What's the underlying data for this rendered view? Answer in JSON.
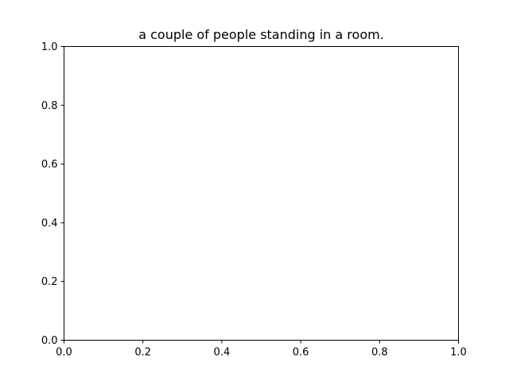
{
  "chart_data": {
    "type": "scatter",
    "title": "a couple of people standing in a room.",
    "xlabel": "",
    "ylabel": "",
    "xlim": [
      0.0,
      1.0
    ],
    "ylim": [
      0.0,
      1.0
    ],
    "x_ticks": [
      "0.0",
      "0.2",
      "0.4",
      "0.6",
      "0.8",
      "1.0"
    ],
    "y_ticks": [
      "0.0",
      "0.2",
      "0.4",
      "0.6",
      "0.8",
      "1.0"
    ],
    "grid": false,
    "series": []
  }
}
